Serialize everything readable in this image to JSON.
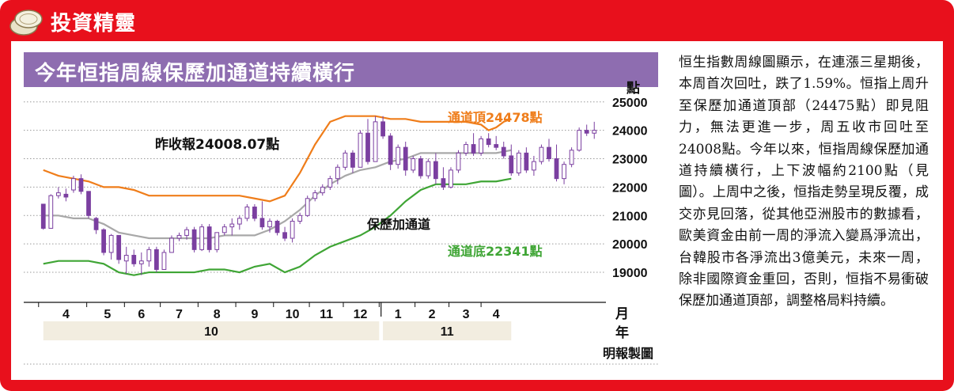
{
  "header": {
    "title": "投資精靈",
    "icon": "coin-icon"
  },
  "chart_data": {
    "type": "candlestick",
    "title": "今年恒指周線保歷加通道持續橫行",
    "ylabel": "點",
    "ylim": [
      18500,
      25300
    ],
    "yticks": [
      25000,
      24000,
      23000,
      22000,
      21000,
      20000,
      19000
    ],
    "month_axis_label": "月",
    "year_axis_label": "年",
    "months": [
      {
        "label": "4",
        "x": 3
      },
      {
        "label": "5",
        "x": 8.5
      },
      {
        "label": "6",
        "x": 13
      },
      {
        "label": "7",
        "x": 18
      },
      {
        "label": "8",
        "x": 23
      },
      {
        "label": "9",
        "x": 28
      },
      {
        "label": "10",
        "x": 33
      },
      {
        "label": "11",
        "x": 37.5
      },
      {
        "label": "12",
        "x": 42
      },
      {
        "label": "1",
        "x": 47
      },
      {
        "label": "2",
        "x": 51.5
      },
      {
        "label": "3",
        "x": 56
      },
      {
        "label": "4",
        "x": 60
      }
    ],
    "years": [
      {
        "label": "10",
        "from": 0,
        "to": 44.5
      },
      {
        "label": "11",
        "from": 45,
        "to": 62
      }
    ],
    "year_divider_x": 44.75,
    "candles": [
      [
        21400,
        21400,
        20500,
        20550
      ],
      [
        20550,
        21750,
        20550,
        21700
      ],
      [
        21700,
        22000,
        21600,
        21800
      ],
      [
        21750,
        21950,
        21500,
        21650
      ],
      [
        21900,
        22400,
        21800,
        22300
      ],
      [
        22300,
        22450,
        21750,
        21850
      ],
      [
        21850,
        21850,
        20900,
        21000
      ],
      [
        20900,
        20950,
        20350,
        20500
      ],
      [
        20500,
        20550,
        19600,
        19700
      ],
      [
        19700,
        20350,
        19450,
        20300
      ],
      [
        20300,
        20300,
        19300,
        19450
      ],
      [
        19400,
        19900,
        18950,
        19600
      ],
      [
        19600,
        19800,
        19200,
        19300
      ],
      [
        19300,
        19700,
        18900,
        19400
      ],
      [
        19400,
        19900,
        19200,
        19800
      ],
      [
        19800,
        19900,
        19000,
        19100
      ],
      [
        19100,
        19800,
        19100,
        19700
      ],
      [
        19700,
        20300,
        19700,
        20200
      ],
      [
        20200,
        20400,
        20100,
        20300
      ],
      [
        20300,
        20600,
        20150,
        20500
      ],
      [
        20500,
        20600,
        19700,
        19800
      ],
      [
        19800,
        20700,
        19750,
        20600
      ],
      [
        20600,
        20700,
        19700,
        19800
      ],
      [
        19800,
        20400,
        19700,
        20400
      ],
      [
        20400,
        20700,
        20300,
        20600
      ],
      [
        20600,
        20900,
        20300,
        20700
      ],
      [
        20700,
        21000,
        20500,
        20900
      ],
      [
        20900,
        21400,
        20800,
        21300
      ],
      [
        21300,
        21400,
        20800,
        20900
      ],
      [
        20900,
        21500,
        20500,
        20600
      ],
      [
        20600,
        20900,
        20400,
        20800
      ],
      [
        20800,
        20850,
        20300,
        20400
      ],
      [
        20400,
        20600,
        20100,
        20200
      ],
      [
        20200,
        20900,
        20050,
        20800
      ],
      [
        20800,
        21100,
        20700,
        21000
      ],
      [
        21000,
        21700,
        20950,
        21600
      ],
      [
        21600,
        21900,
        21500,
        21800
      ],
      [
        21800,
        22100,
        21700,
        22000
      ],
      [
        22000,
        22400,
        21900,
        22300
      ],
      [
        22300,
        22800,
        22100,
        22700
      ],
      [
        22700,
        23300,
        22600,
        23200
      ],
      [
        23200,
        23300,
        22500,
        22700
      ],
      [
        22700,
        24000,
        22700,
        23900
      ],
      [
        23900,
        24400,
        22800,
        22900
      ],
      [
        22900,
        24500,
        22900,
        24300
      ],
      [
        24300,
        24500,
        23700,
        23800
      ],
      [
        23800,
        23900,
        22600,
        22800
      ],
      [
        22800,
        23500,
        22650,
        23400
      ],
      [
        23400,
        23600,
        22400,
        22600
      ],
      [
        22600,
        23100,
        22500,
        23000
      ],
      [
        23000,
        23100,
        22300,
        22400
      ],
      [
        22400,
        23000,
        22300,
        22900
      ],
      [
        22900,
        23200,
        22100,
        22300
      ],
      [
        22300,
        22700,
        21900,
        22000
      ],
      [
        22000,
        22700,
        21950,
        22600
      ],
      [
        22600,
        23300,
        22500,
        23200
      ],
      [
        23200,
        23600,
        23100,
        23500
      ],
      [
        23500,
        23900,
        23100,
        23200
      ],
      [
        23200,
        23800,
        23100,
        23700
      ],
      [
        23700,
        23900,
        23400,
        23500
      ],
      [
        23500,
        23800,
        23300,
        23400
      ],
      [
        23400,
        23600,
        23000,
        23100
      ],
      [
        23100,
        23500,
        22400,
        22500
      ],
      [
        22500,
        23300,
        22400,
        23200
      ],
      [
        23200,
        23400,
        22500,
        22600
      ],
      [
        22600,
        23100,
        22400,
        22900
      ],
      [
        22900,
        23500,
        22800,
        23400
      ],
      [
        23400,
        23700,
        22900,
        23000
      ],
      [
        23000,
        23500,
        22200,
        22300
      ],
      [
        22300,
        22900,
        22100,
        22800
      ],
      [
        22800,
        23400,
        22700,
        23300
      ],
      [
        23300,
        24100,
        23250,
        24000
      ],
      [
        24000,
        24200,
        23800,
        23900
      ],
      [
        23900,
        24300,
        23700,
        24000
      ]
    ],
    "upper_band": {
      "name": "通道頂24478點",
      "label": "通道頂24478點",
      "x": [
        0,
        2,
        4,
        6,
        8,
        10,
        12,
        14,
        16,
        18,
        20,
        22,
        24,
        26,
        28,
        30,
        32,
        34,
        36,
        38,
        40,
        42,
        44,
        46,
        48,
        50,
        52,
        54,
        56,
        58,
        59,
        60,
        61,
        62
      ],
      "y": [
        22600,
        22400,
        22300,
        22200,
        22000,
        22000,
        21900,
        21700,
        21700,
        21700,
        21700,
        21700,
        21700,
        21700,
        21600,
        21500,
        21700,
        22500,
        23500,
        24300,
        24500,
        24500,
        24500,
        24400,
        24400,
        24300,
        24300,
        24300,
        24300,
        24200,
        24000,
        24100,
        24300,
        24400
      ]
    },
    "middle_band": {
      "name": "保歷加通道",
      "label": "保歷加通道",
      "x": [
        0,
        2,
        4,
        6,
        8,
        10,
        12,
        14,
        16,
        18,
        20,
        22,
        24,
        26,
        28,
        30,
        32,
        34,
        36,
        38,
        40,
        42,
        44,
        46,
        48,
        50,
        52,
        54,
        56,
        58,
        60,
        62
      ],
      "y": [
        21000,
        21000,
        20900,
        20900,
        20700,
        20400,
        20300,
        20200,
        20200,
        20200,
        20200,
        20200,
        20300,
        20300,
        20300,
        20500,
        20800,
        21200,
        21700,
        22100,
        22400,
        22600,
        22700,
        22900,
        23000,
        23200,
        23200,
        23200,
        23200,
        23200,
        23200,
        23300
      ]
    },
    "lower_band": {
      "name": "通道底22341點",
      "label": "通道底22341點",
      "x": [
        0,
        2,
        4,
        6,
        8,
        10,
        12,
        14,
        16,
        18,
        20,
        22,
        24,
        26,
        28,
        30,
        32,
        34,
        36,
        38,
        40,
        42,
        44,
        46,
        48,
        50,
        52,
        54,
        56,
        58,
        60,
        62
      ],
      "y": [
        19300,
        19400,
        19400,
        19400,
        19300,
        19000,
        18900,
        19000,
        19000,
        19000,
        19000,
        19100,
        19100,
        19000,
        19200,
        19300,
        19000,
        19200,
        19600,
        19900,
        20100,
        20300,
        20600,
        21000,
        21500,
        21900,
        22100,
        22100,
        22100,
        22200,
        22200,
        22300
      ]
    },
    "annotations": [
      {
        "text": "昨收報24008.07點",
        "x": 22.5,
        "y": 24150
      }
    ],
    "source": "明報製圖"
  },
  "article": {
    "text": "恒生指數周線圖顯示，在連漲三星期後，本周首次回吐，跌了1.59%。恒指上周升至保歷加通道頂部（24475點）即見阻力，無法更進一步，周五收市回吐至24008點。今年以來，恒指周線保歷加通道持續橫行，上下波幅約2100點（見圖）。上周中之後，恒指走勢呈現反覆，成交亦見回落，從其他亞洲股市的數據看，歐美資金由前一周的淨流入變爲淨流出，台韓股市各淨流出3億美元，未來一周，除非國際資金重回，否則，恒指不易衝破保歷加通道頂部，調整格局料持續。"
  },
  "colors": {
    "frame": "#e8101c",
    "banner": "#8e6db0",
    "upper_band": "#ef7d1a",
    "middle_band": "#a8a8a8",
    "lower_band": "#3fa535",
    "candle": "#7b3fa0",
    "year_bar": "#f2ede0"
  }
}
